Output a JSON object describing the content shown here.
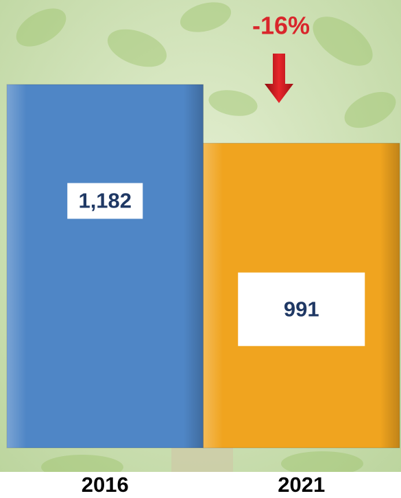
{
  "chart_data": {
    "type": "bar",
    "categories": [
      "2016",
      "2021"
    ],
    "values": [
      1182,
      991
    ],
    "value_labels": [
      "1,182",
      "991"
    ],
    "colors": [
      "#4f86c6",
      "#f0a41f"
    ],
    "annotation": "-16%"
  }
}
